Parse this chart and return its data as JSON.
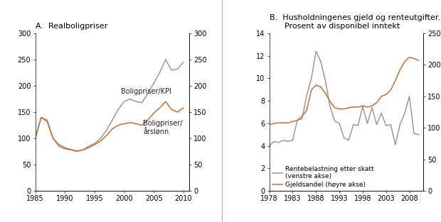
{
  "panel_A": {
    "title": "A.  Realboligpriser",
    "xlim": [
      1985,
      2011
    ],
    "ylim": [
      0,
      300
    ],
    "xticks": [
      1985,
      1990,
      1995,
      2000,
      2005,
      2010
    ],
    "yticks": [
      0,
      50,
      100,
      150,
      200,
      250,
      300
    ],
    "kpi_label": "Boligpriser/KPI",
    "arslonn_label": "Boligpriser/\nårslønn",
    "kpi_x": [
      1985,
      1986,
      1987,
      1988,
      1989,
      1990,
      1991,
      1992,
      1993,
      1994,
      1995,
      1996,
      1997,
      1998,
      1999,
      2000,
      2001,
      2002,
      2003,
      2004,
      2005,
      2006,
      2007,
      2008,
      2009,
      2010
    ],
    "kpi_y": [
      100,
      140,
      135,
      100,
      85,
      80,
      78,
      75,
      78,
      85,
      90,
      100,
      115,
      135,
      155,
      170,
      175,
      170,
      168,
      185,
      205,
      225,
      250,
      230,
      232,
      245
    ],
    "arslonn_x": [
      1985,
      1986,
      1987,
      1988,
      1989,
      1990,
      1991,
      1992,
      1993,
      1994,
      1995,
      1996,
      1997,
      1998,
      1999,
      2000,
      2001,
      2002,
      2003,
      2004,
      2005,
      2006,
      2007,
      2008,
      2009,
      2010
    ],
    "arslonn_y": [
      100,
      140,
      132,
      100,
      88,
      82,
      79,
      76,
      78,
      82,
      88,
      95,
      105,
      118,
      125,
      128,
      130,
      128,
      125,
      135,
      148,
      158,
      170,
      155,
      150,
      158
    ],
    "line_color_kpi": "#999999",
    "line_color_arslonn": "#c87032",
    "kpi_ann_x": 1999.5,
    "kpi_ann_y": 185,
    "arslonn_ann_x": 2003.2,
    "arslonn_ann_y": 108
  },
  "panel_B": {
    "title": "B.  Husholdningenes gjeld og renteutgifter.\n      Prosent av disponibel inntekt",
    "xlim": [
      1978,
      2011
    ],
    "ylim_left": [
      0,
      14
    ],
    "ylim_right": [
      0,
      250
    ],
    "xticks": [
      1978,
      1983,
      1988,
      1993,
      1998,
      2003,
      2008
    ],
    "yticks_left": [
      0,
      2,
      4,
      6,
      8,
      10,
      12,
      14
    ],
    "yticks_right": [
      0,
      50,
      100,
      150,
      200,
      250
    ],
    "rente_label": "Rentebelastning etter skatt\n(venstre akse)",
    "gjeld_label": "Gjeldsandel (høyre akse)",
    "rente_x": [
      1978,
      1979,
      1980,
      1981,
      1982,
      1983,
      1984,
      1985,
      1986,
      1987,
      1988,
      1989,
      1990,
      1991,
      1992,
      1993,
      1994,
      1995,
      1996,
      1997,
      1998,
      1999,
      2000,
      2001,
      2002,
      2003,
      2004,
      2005,
      2006,
      2007,
      2008,
      2009,
      2010
    ],
    "rente_y": [
      4.0,
      4.4,
      4.3,
      4.5,
      4.4,
      4.5,
      6.3,
      6.4,
      8.5,
      10.0,
      12.4,
      11.5,
      9.8,
      7.5,
      6.2,
      6.0,
      4.7,
      4.5,
      5.9,
      5.8,
      7.5,
      6.0,
      7.4,
      5.9,
      6.9,
      5.8,
      5.9,
      4.1,
      5.9,
      6.9,
      8.4,
      5.1,
      5.0
    ],
    "gjeld_x": [
      1978,
      1979,
      1980,
      1981,
      1982,
      1983,
      1984,
      1985,
      1986,
      1987,
      1988,
      1989,
      1990,
      1991,
      1992,
      1993,
      1994,
      1995,
      1996,
      1997,
      1998,
      1999,
      2000,
      2001,
      2002,
      2003,
      2004,
      2005,
      2006,
      2007,
      2008,
      2009,
      2010
    ],
    "gjeld_y": [
      105,
      107,
      108,
      108,
      108,
      110,
      112,
      118,
      128,
      160,
      168,
      165,
      155,
      142,
      132,
      130,
      130,
      132,
      133,
      133,
      135,
      133,
      135,
      140,
      150,
      153,
      160,
      175,
      192,
      205,
      212,
      210,
      207
    ],
    "line_color_rente": "#999999",
    "line_color_gjeld": "#c87032"
  },
  "background_color": "#ffffff",
  "font_color": "#222222",
  "divider_color": "#aaaaaa"
}
